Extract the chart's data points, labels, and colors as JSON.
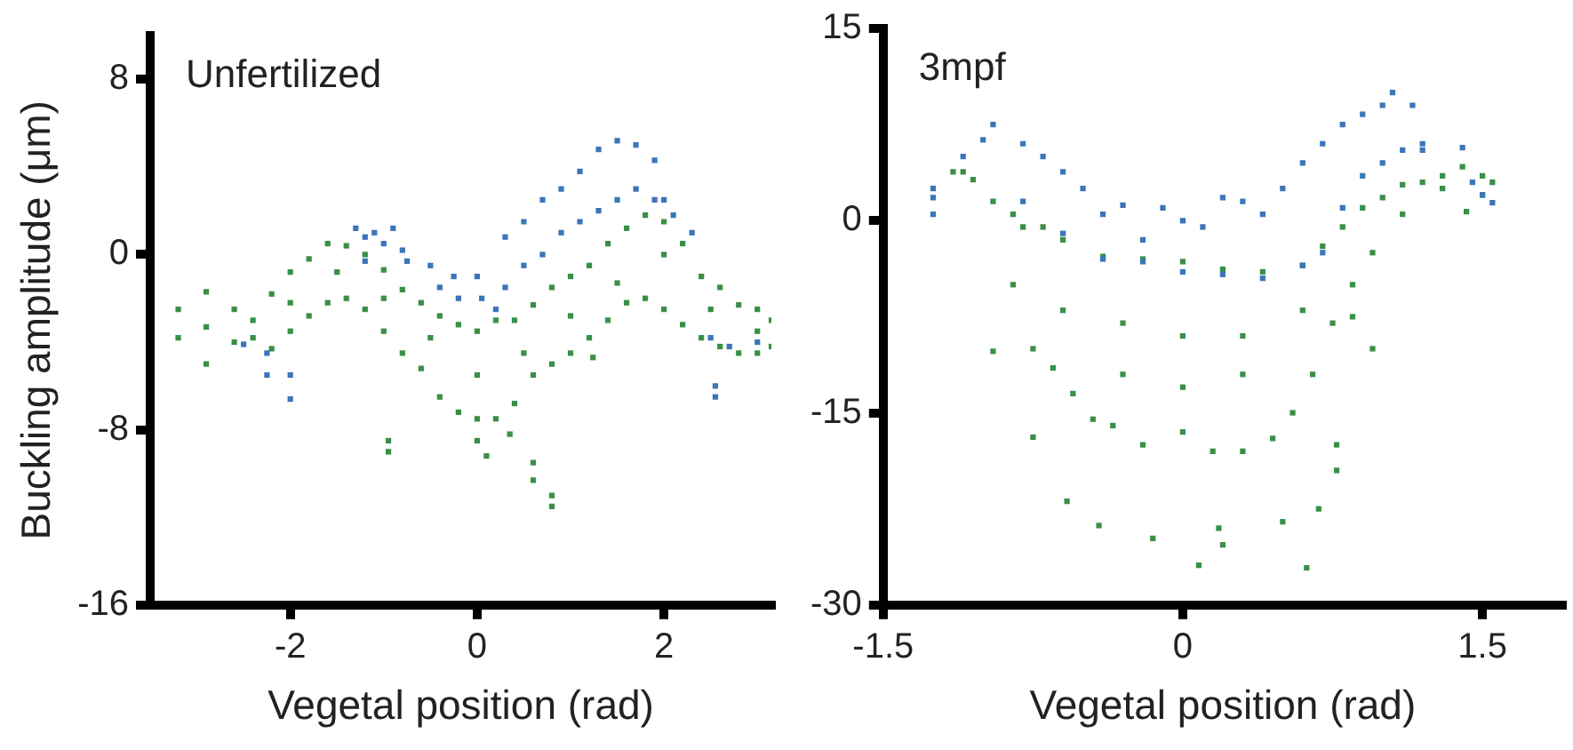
{
  "chart_data": [
    {
      "type": "scatter",
      "title": "Unfertilized",
      "xlabel": "Vegetal position (rad)",
      "ylabel": "Buckling amplitude (μm)",
      "xlim": [
        -3.5,
        3.15
      ],
      "xticks": [
        -2,
        0,
        2
      ],
      "ylim": [
        -16,
        10
      ],
      "yticks": [
        -16,
        -8,
        0,
        8
      ],
      "grid": false,
      "legend": false,
      "marker": "square",
      "series": [
        {
          "color": "#3a76b8",
          "x": [
            -1.3,
            -1.2,
            -1.1,
            -1.0,
            -0.9,
            -0.8,
            -0.75,
            -1.2,
            -0.5,
            -0.4,
            -0.25,
            -0.2,
            0.0,
            0.05,
            -2.0,
            -2.0,
            -2.25,
            -2.25,
            -2.5,
            2.55,
            2.55,
            0.3,
            0.5,
            0.7,
            0.9,
            1.1,
            1.3,
            1.5,
            1.7,
            1.9,
            2.0,
            2.1,
            2.3,
            0.3,
            0.5,
            0.7,
            0.9,
            1.1,
            1.3,
            1.5,
            1.7,
            1.9,
            0.2,
            2.5,
            2.7,
            3.0
          ],
          "values": [
            1.2,
            0.8,
            1.0,
            0.5,
            1.2,
            0.2,
            -0.3,
            -0.3,
            -0.5,
            -1.5,
            -1.0,
            -2.0,
            -1.0,
            -2.0,
            -5.5,
            -6.6,
            -4.5,
            -5.5,
            -4.1,
            -6.0,
            -6.5,
            0.8,
            1.5,
            2.5,
            3.0,
            3.8,
            4.8,
            5.2,
            5.0,
            4.3,
            2.5,
            1.8,
            1.0,
            -1.5,
            -0.5,
            0,
            1,
            1.5,
            2,
            2.5,
            3,
            2.5,
            -2.5,
            -3.8,
            -4.2,
            -4.0
          ]
        },
        {
          "color": "#3a8f47",
          "x": [
            -3.2,
            -2.9,
            -2.6,
            -2.4,
            -2.2,
            -2.0,
            -1.8,
            -1.6,
            -1.4,
            -1.2,
            -1.0,
            -0.8,
            -0.6,
            -0.4,
            -0.2,
            0,
            0.2,
            0.4,
            0.6,
            0.8,
            1.0,
            1.2,
            1.4,
            1.6,
            1.8,
            2.0,
            2.2,
            2.4,
            2.6,
            2.8,
            3.0,
            3.15,
            -3.2,
            -2.9,
            -2.6,
            -2.4,
            -2.2,
            -2.0,
            -1.8,
            -1.6,
            -1.4,
            -1.2,
            -1.0,
            -0.8,
            -0.6,
            -0.4,
            -0.2,
            0,
            0.2,
            0.4,
            0.6,
            0.8,
            1.0,
            1.2,
            1.4,
            1.6,
            1.8,
            2.0,
            2.2,
            2.4,
            2.6,
            2.8,
            3.0,
            3.15,
            -2.9,
            -2.0,
            -1.5,
            -1.0,
            -0.5,
            0,
            0.5,
            1.0,
            1.5,
            2.0,
            2.5,
            3.0,
            -0.95,
            -0.95,
            0.1,
            0.35,
            0.6,
            0.6,
            0.8,
            0.8,
            0.0,
            1.24
          ],
          "values": [
            -2.5,
            -1.7,
            -2.5,
            -3.0,
            -1.8,
            -0.8,
            -0.2,
            0.5,
            0.4,
            0.0,
            -0.7,
            -1.6,
            -2.2,
            -2.8,
            -3.2,
            -3.5,
            -3.0,
            -3.0,
            -2.3,
            -1.5,
            -1.0,
            -0.5,
            0.5,
            1.2,
            1.8,
            1.5,
            0.5,
            -1.0,
            -1.5,
            -2.3,
            -2.5,
            -3.0,
            -3.8,
            -5.0,
            -4.0,
            -3.8,
            -4.3,
            -3.5,
            -2.8,
            -2.2,
            -2.0,
            -2.5,
            -3.5,
            -4.5,
            -5.2,
            -6.5,
            -7.2,
            -7.5,
            -7.5,
            -6.8,
            -5.5,
            -5.0,
            -4.5,
            -3.8,
            -3.0,
            -2.2,
            -2.0,
            -2.5,
            -3.2,
            -3.8,
            -4.2,
            -4.5,
            -4.5,
            -4.2,
            -3.3,
            -2.2,
            -0.8,
            -2.0,
            -3.8,
            -5.5,
            -4.5,
            -2.8,
            -1.3,
            0,
            -2.5,
            -3.5,
            -8.5,
            -9.0,
            -9.2,
            -8.2,
            -9.5,
            -10.3,
            -11.0,
            -11.5,
            -8.5,
            -4.7
          ]
        }
      ]
    },
    {
      "type": "scatter",
      "title": "3mpf",
      "xlabel": "Vegetal position (rad)",
      "xlim": [
        -1.5,
        1.9
      ],
      "xticks": [
        -1.5,
        0,
        1.5
      ],
      "ylim": [
        -30,
        15
      ],
      "yticks": [
        -30,
        -15,
        0,
        15
      ],
      "grid": false,
      "legend": false,
      "marker": "square",
      "series": [
        {
          "color": "#3a76b8",
          "x": [
            -1.25,
            -1.1,
            -1.0,
            -0.95,
            -0.8,
            -0.7,
            -0.6,
            -0.5,
            -0.4,
            -0.3,
            -0.2,
            -0.1,
            0,
            0.1,
            0.2,
            0.3,
            0.4,
            0.5,
            0.6,
            0.7,
            0.8,
            0.9,
            1.0,
            1.05,
            1.15,
            1.2,
            -0.8,
            -0.6,
            -0.4,
            -0.2,
            0,
            0.2,
            0.4,
            0.6,
            0.7,
            0.8,
            0.9,
            1.0,
            1.1,
            1.2,
            -1.25,
            -1.25,
            1.4,
            1.45,
            1.5,
            1.55
          ],
          "values": [
            2.5,
            5,
            6.3,
            7.5,
            6,
            5,
            3.8,
            2.5,
            0.5,
            1.2,
            -1.5,
            1.0,
            0.0,
            -0.5,
            1.8,
            1.5,
            0.5,
            2.5,
            4.5,
            6.0,
            7.5,
            8.3,
            9.0,
            10,
            9.0,
            6.0,
            1.5,
            -1,
            -3,
            -3.2,
            -4,
            -4.2,
            -4.5,
            -3.5,
            -2.5,
            1.0,
            3.5,
            4.5,
            5.5,
            5.5,
            1.8,
            0.5,
            5.7,
            3.0,
            2.0,
            1.4
          ]
        },
        {
          "color": "#3a8f47",
          "x": [
            -1.1,
            -1.05,
            -0.95,
            -0.85,
            -0.8,
            -0.7,
            -0.6,
            -0.4,
            -0.2,
            0,
            0.2,
            0.4,
            0.6,
            0.7,
            0.8,
            0.9,
            1.0,
            1.1,
            1.2,
            1.3,
            1.4,
            1.5,
            1.55,
            -0.85,
            -0.75,
            -0.65,
            -0.55,
            -0.45,
            -0.35,
            -0.2,
            0,
            0.15,
            0.3,
            0.45,
            0.55,
            0.65,
            0.75,
            0.85,
            0.95,
            1.1,
            1.3,
            1.5,
            -0.6,
            -0.3,
            0,
            0.3,
            0.6,
            -0.3,
            0.3,
            0,
            -0.95,
            -0.75,
            -0.58,
            -0.42,
            -0.15,
            0.08,
            0.18,
            0.2,
            0.5,
            0.62,
            0.68,
            0.77,
            0.77,
            0.95,
            0.85,
            -1.15,
            1.42
          ],
          "values": [
            3.8,
            3.2,
            1.5,
            0.5,
            -0.5,
            -0.5,
            -1.5,
            -2.8,
            -3.0,
            -3.2,
            -3.8,
            -4.0,
            -3.5,
            -2.0,
            -0.5,
            1.0,
            1.8,
            2.8,
            3.0,
            3.5,
            4.2,
            3.5,
            3.0,
            -5,
            -10,
            -11.5,
            -13.5,
            -15.5,
            -16,
            -17.5,
            -16.5,
            -18,
            -18,
            -17,
            -15,
            -12,
            -8,
            -5,
            -2.5,
            0.5,
            2.5,
            2.0,
            -7,
            -8,
            -9,
            -9,
            -7,
            -12,
            -12,
            -13,
            -10.2,
            -16.9,
            -21.9,
            -23.8,
            -24.8,
            -26.9,
            -24,
            -25.3,
            -23.5,
            -27.1,
            -22.5,
            -19.5,
            -17.5,
            -10,
            -7.5,
            3.8,
            0.7
          ]
        }
      ]
    }
  ]
}
